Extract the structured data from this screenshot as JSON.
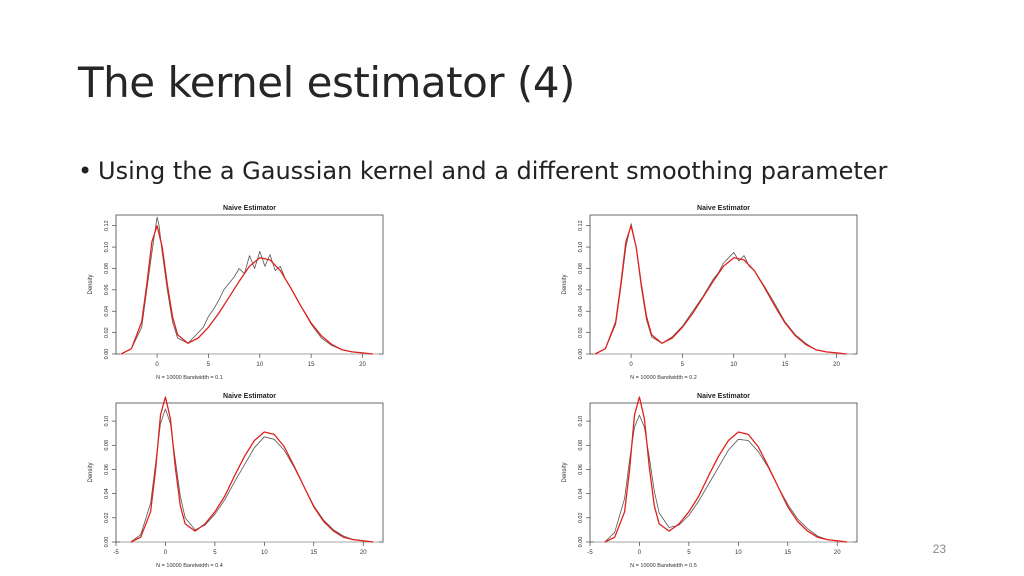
{
  "slide": {
    "title": "The kernel estimator (4)",
    "bullet": "Using the a Gaussian kernel and a different smoothing parameter",
    "page_number": "23"
  },
  "colors": {
    "estimate": "#555555",
    "reference": "#e0201b"
  },
  "chart_data": [
    {
      "type": "line",
      "title": "Naive Estimator",
      "xlabel": "N = 10000   Bandwidth = 0.1",
      "ylabel": "Density",
      "xlim": [
        -4,
        22
      ],
      "ylim": [
        0,
        0.13
      ],
      "xticks": [
        0,
        5,
        10,
        15,
        20
      ],
      "yticks": [
        0.0,
        0.02,
        0.04,
        0.06,
        0.08,
        0.1,
        0.12
      ],
      "bandwidth": 0.1,
      "series": [
        {
          "style": "estimate",
          "x": [
            -3.5,
            -2.5,
            -1.5,
            -1,
            -0.5,
            -0.2,
            0,
            0.2,
            0.5,
            1,
            1.5,
            2,
            3,
            4,
            4.5,
            5,
            5.5,
            6,
            6.5,
            7,
            7.5,
            8,
            8.5,
            9,
            9.5,
            10,
            10.5,
            11,
            11.5,
            12,
            12.5,
            13,
            14,
            15,
            16,
            17,
            18,
            19,
            20,
            21
          ],
          "y": [
            0,
            0.005,
            0.025,
            0.06,
            0.095,
            0.115,
            0.128,
            0.12,
            0.095,
            0.06,
            0.03,
            0.015,
            0.01,
            0.02,
            0.025,
            0.035,
            0.042,
            0.05,
            0.06,
            0.066,
            0.072,
            0.08,
            0.075,
            0.092,
            0.08,
            0.096,
            0.082,
            0.093,
            0.078,
            0.082,
            0.07,
            0.062,
            0.045,
            0.028,
            0.015,
            0.008,
            0.004,
            0.002,
            0.001,
            0
          ]
        },
        {
          "style": "reference",
          "x": [
            -3.5,
            -2.5,
            -1.5,
            -1,
            -0.5,
            0,
            0.5,
            1,
            1.5,
            2,
            3,
            4,
            5,
            6,
            7,
            8,
            9,
            10,
            11,
            12,
            13,
            14,
            15,
            16,
            17,
            18,
            19,
            20,
            21
          ],
          "y": [
            0,
            0.005,
            0.03,
            0.065,
            0.105,
            0.12,
            0.1,
            0.065,
            0.035,
            0.018,
            0.01,
            0.015,
            0.025,
            0.038,
            0.053,
            0.068,
            0.082,
            0.09,
            0.088,
            0.078,
            0.062,
            0.045,
            0.029,
            0.017,
            0.009,
            0.004,
            0.002,
            0.001,
            0
          ]
        }
      ]
    },
    {
      "type": "line",
      "title": "Naive Estimator",
      "xlabel": "N = 10000   Bandwidth = 0.2",
      "ylabel": "Density",
      "xlim": [
        -4,
        22
      ],
      "ylim": [
        0,
        0.13
      ],
      "xticks": [
        0,
        5,
        10,
        15,
        20
      ],
      "yticks": [
        0.0,
        0.02,
        0.04,
        0.06,
        0.08,
        0.1,
        0.12
      ],
      "bandwidth": 0.2,
      "series": [
        {
          "style": "estimate",
          "x": [
            -3.5,
            -2.5,
            -1.5,
            -1,
            -0.5,
            0,
            0.5,
            1,
            1.5,
            2,
            3,
            4,
            5,
            6,
            7,
            8,
            8.5,
            9,
            9.5,
            10,
            10.5,
            11,
            11.5,
            12,
            13,
            14,
            15,
            16,
            17,
            18,
            19,
            20,
            21
          ],
          "y": [
            0,
            0.005,
            0.028,
            0.062,
            0.1,
            0.122,
            0.1,
            0.062,
            0.032,
            0.016,
            0.01,
            0.016,
            0.026,
            0.04,
            0.054,
            0.07,
            0.076,
            0.085,
            0.09,
            0.095,
            0.087,
            0.092,
            0.082,
            0.078,
            0.063,
            0.047,
            0.03,
            0.018,
            0.01,
            0.004,
            0.002,
            0.001,
            0
          ]
        },
        {
          "style": "reference",
          "x": [
            -3.5,
            -2.5,
            -1.5,
            -1,
            -0.5,
            0,
            0.5,
            1,
            1.5,
            2,
            3,
            4,
            5,
            6,
            7,
            8,
            9,
            10,
            11,
            12,
            13,
            14,
            15,
            16,
            17,
            18,
            19,
            20,
            21
          ],
          "y": [
            0,
            0.005,
            0.03,
            0.065,
            0.105,
            0.12,
            0.1,
            0.065,
            0.035,
            0.018,
            0.01,
            0.015,
            0.025,
            0.038,
            0.053,
            0.068,
            0.082,
            0.09,
            0.088,
            0.078,
            0.062,
            0.045,
            0.029,
            0.017,
            0.009,
            0.004,
            0.002,
            0.001,
            0
          ]
        }
      ]
    },
    {
      "type": "line",
      "title": "Naive Estimator",
      "xlabel": "N = 10000   Bandwidth = 0.4",
      "ylabel": "Density",
      "xlim": [
        -5,
        22
      ],
      "ylim": [
        0,
        0.115
      ],
      "xticks": [
        -5,
        0,
        5,
        10,
        15,
        20
      ],
      "yticks": [
        0.0,
        0.02,
        0.04,
        0.06,
        0.08,
        0.1
      ],
      "bandwidth": 0.4,
      "series": [
        {
          "style": "estimate",
          "x": [
            -3.5,
            -2.5,
            -1.5,
            -1,
            -0.5,
            0,
            0.5,
            1,
            1.5,
            2,
            3,
            4,
            5,
            6,
            7,
            8,
            9,
            10,
            11,
            12,
            13,
            14,
            15,
            16,
            17,
            18,
            19,
            20,
            21
          ],
          "y": [
            0,
            0.006,
            0.032,
            0.065,
            0.098,
            0.11,
            0.098,
            0.068,
            0.038,
            0.02,
            0.01,
            0.014,
            0.023,
            0.035,
            0.05,
            0.064,
            0.078,
            0.087,
            0.085,
            0.076,
            0.062,
            0.046,
            0.03,
            0.018,
            0.01,
            0.005,
            0.002,
            0.001,
            0
          ]
        },
        {
          "style": "reference",
          "x": [
            -3.5,
            -2.5,
            -1.5,
            -1,
            -0.5,
            0,
            0.5,
            1,
            1.5,
            2,
            3,
            4,
            5,
            6,
            7,
            8,
            9,
            10,
            11,
            12,
            13,
            14,
            15,
            16,
            17,
            18,
            19,
            20,
            21
          ],
          "y": [
            0,
            0.004,
            0.025,
            0.06,
            0.105,
            0.12,
            0.102,
            0.062,
            0.03,
            0.015,
            0.009,
            0.015,
            0.025,
            0.038,
            0.055,
            0.071,
            0.084,
            0.091,
            0.089,
            0.079,
            0.063,
            0.046,
            0.029,
            0.017,
            0.009,
            0.004,
            0.002,
            0.001,
            0
          ]
        }
      ]
    },
    {
      "type": "line",
      "title": "Naive Estimator",
      "xlabel": "N = 10000   Bandwidth = 0.5",
      "ylabel": "Density",
      "xlim": [
        -5,
        22
      ],
      "ylim": [
        0,
        0.115
      ],
      "xticks": [
        -5,
        0,
        5,
        10,
        15,
        20
      ],
      "yticks": [
        0.0,
        0.02,
        0.04,
        0.06,
        0.08,
        0.1
      ],
      "bandwidth": 0.5,
      "series": [
        {
          "style": "estimate",
          "x": [
            -3.5,
            -2.5,
            -1.5,
            -1,
            -0.5,
            0,
            0.5,
            1,
            1.5,
            2,
            3,
            4,
            5,
            6,
            7,
            8,
            9,
            10,
            11,
            12,
            13,
            14,
            15,
            16,
            17,
            18,
            19,
            20,
            21
          ],
          "y": [
            0,
            0.008,
            0.036,
            0.068,
            0.095,
            0.105,
            0.095,
            0.07,
            0.042,
            0.024,
            0.012,
            0.014,
            0.022,
            0.034,
            0.048,
            0.062,
            0.076,
            0.085,
            0.084,
            0.075,
            0.062,
            0.046,
            0.031,
            0.019,
            0.011,
            0.005,
            0.002,
            0.001,
            0
          ]
        },
        {
          "style": "reference",
          "x": [
            -3.5,
            -2.5,
            -1.5,
            -1,
            -0.5,
            0,
            0.5,
            1,
            1.5,
            2,
            3,
            4,
            5,
            6,
            7,
            8,
            9,
            10,
            11,
            12,
            13,
            14,
            15,
            16,
            17,
            18,
            19,
            20,
            21
          ],
          "y": [
            0,
            0.004,
            0.025,
            0.06,
            0.105,
            0.12,
            0.102,
            0.062,
            0.03,
            0.015,
            0.009,
            0.015,
            0.025,
            0.038,
            0.055,
            0.071,
            0.084,
            0.091,
            0.089,
            0.079,
            0.063,
            0.046,
            0.029,
            0.017,
            0.009,
            0.004,
            0.002,
            0.001,
            0
          ]
        }
      ]
    }
  ]
}
